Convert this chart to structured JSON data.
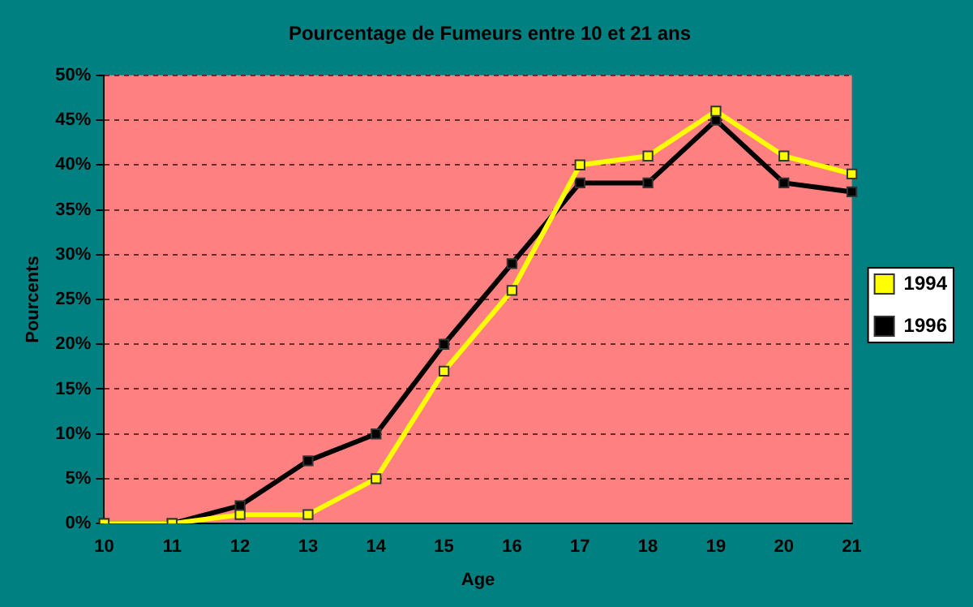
{
  "chart_data": {
    "type": "line",
    "title": "Pourcentage de Fumeurs entre 10 et 21 ans",
    "xlabel": "Age",
    "ylabel": "Pourcents",
    "categories": [
      "10",
      "11",
      "12",
      "13",
      "14",
      "15",
      "16",
      "17",
      "18",
      "19",
      "20",
      "21"
    ],
    "series": [
      {
        "name": "1994",
        "color": "#ffff00",
        "values": [
          0,
          0,
          1,
          1,
          5,
          17,
          26,
          40,
          41,
          46,
          41,
          39
        ]
      },
      {
        "name": "1996",
        "color": "#000000",
        "values": [
          0,
          0,
          2,
          7,
          10,
          20,
          29,
          38,
          38,
          45,
          38,
          37
        ]
      }
    ],
    "ylim": [
      0,
      50
    ],
    "yticks": [
      {
        "value": 0,
        "label": "0%"
      },
      {
        "value": 5,
        "label": "5%"
      },
      {
        "value": 10,
        "label": "10%"
      },
      {
        "value": 15,
        "label": "15%"
      },
      {
        "value": 20,
        "label": "20%"
      },
      {
        "value": 25,
        "label": "25%"
      },
      {
        "value": 30,
        "label": "30%"
      },
      {
        "value": 35,
        "label": "35%"
      },
      {
        "value": 40,
        "label": "40%"
      },
      {
        "value": 45,
        "label": "45%"
      },
      {
        "value": 50,
        "label": "50%"
      }
    ],
    "grid": "y",
    "legend": "right",
    "marker": "square",
    "line_style": "solid"
  }
}
